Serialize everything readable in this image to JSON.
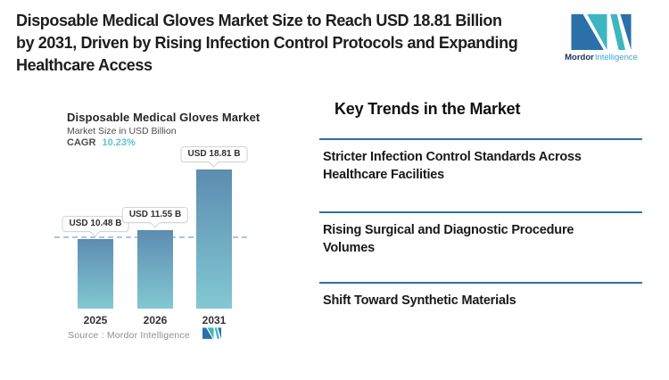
{
  "header": {
    "title_lines": [
      "Disposable Medical Gloves Market Size to Reach USD 18.81 Billion",
      "by 2031, Driven by Rising Infection Control Protocols and Expanding",
      "Healthcare Access"
    ],
    "brand": {
      "name_bold": "Mordor",
      "name_light": "Intelligence"
    }
  },
  "chart": {
    "title": "Disposable Medical Gloves Market",
    "subtitle": "Market Size in USD Billion",
    "cagr_label": "CAGR",
    "cagr_value": "10.23%",
    "source_label": "Source :  Mordor Intelligence"
  },
  "chart_data": {
    "type": "bar",
    "title": "Disposable Medical Gloves Market",
    "subtitle": "Market Size in USD Billion",
    "unit": "USD Billion",
    "cagr_pct": 10.23,
    "categories": [
      "2025",
      "2026",
      "2031"
    ],
    "values": [
      10.48,
      11.55,
      18.81
    ],
    "bar_labels": [
      "USD 10.48 B",
      "USD 11.55 B",
      "USD 18.81 B"
    ],
    "dashed_reference_value": 10.48,
    "legend": "none",
    "grid": "off",
    "colors": {
      "bar_top": "#5d8cb1",
      "bar_bottom": "#82c8d2",
      "dash_line": "#a9c8dd"
    }
  },
  "key_trends": {
    "heading": "Key Trends in the Market",
    "items": [
      "Stricter Infection Control Standards Across Healthcare Facilities",
      "Rising Surgical and Diagnostic Procedure Volumes",
      "Shift Toward Synthetic Materials"
    ],
    "divider_color": "#2c72a6"
  },
  "logo_colors": {
    "dark": "#2b70a8",
    "teal": "#3db6c1"
  }
}
